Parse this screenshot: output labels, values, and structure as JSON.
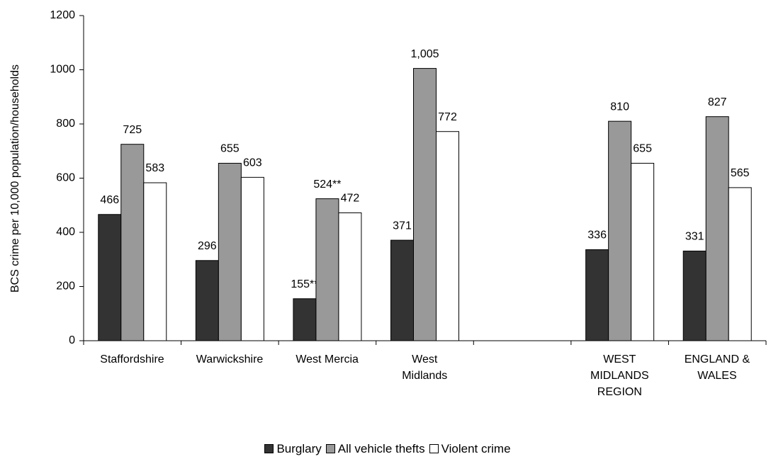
{
  "chart_data": {
    "type": "bar",
    "y_label": "BCS crime per 10,000 population/households",
    "categories": [
      "Staffordshire",
      "Warwickshire",
      "West Mercia",
      "West\nMidlands",
      null,
      "WEST\nMIDLANDS\nREGION",
      "ENGLAND &\nWALES"
    ],
    "series": [
      {
        "name": "Burglary",
        "color": "#333333",
        "values": [
          466,
          296,
          155,
          371,
          null,
          336,
          331
        ],
        "value_labels": [
          "466",
          "296",
          "155**",
          "371",
          null,
          "336",
          "331"
        ]
      },
      {
        "name": "All vehicle thefts",
        "color": "#999999",
        "values": [
          725,
          655,
          524,
          1005,
          null,
          810,
          827
        ],
        "value_labels": [
          "725",
          "655",
          "524**",
          "1,005",
          null,
          "810",
          "827"
        ]
      },
      {
        "name": "Violent crime",
        "color": "#ffffff",
        "values": [
          583,
          603,
          472,
          772,
          null,
          655,
          565
        ],
        "value_labels": [
          "583",
          "603",
          "472",
          "772",
          null,
          "655",
          "565"
        ]
      }
    ],
    "ylim": [
      0,
      1200
    ],
    "yticks": [
      0,
      200,
      400,
      600,
      800,
      1000,
      1200
    ],
    "grid": false,
    "legend": "bottom"
  }
}
